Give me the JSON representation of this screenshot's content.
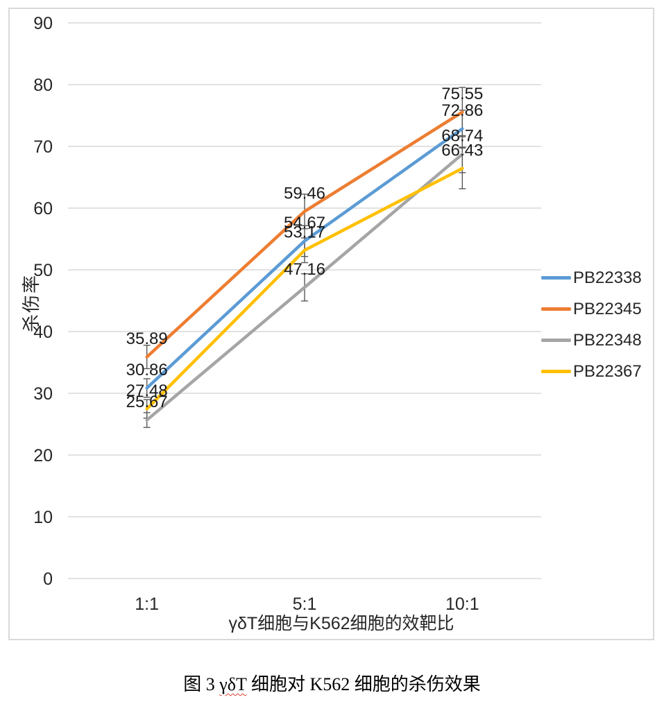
{
  "chart_data": {
    "type": "line",
    "title": "",
    "xlabel": "γδT细胞与K562细胞的效靶比",
    "ylabel": "杀伤率",
    "categories": [
      "1:1",
      "5:1",
      "10:1"
    ],
    "ylim": [
      0,
      90
    ],
    "yticks": [
      0,
      10,
      20,
      30,
      40,
      50,
      60,
      70,
      80,
      90
    ],
    "grid": true,
    "legend_position": "right",
    "data_labels": true,
    "series": [
      {
        "name": "PB22338",
        "color": "#5B9BD5",
        "values": [
          30.86,
          54.67,
          72.86
        ],
        "errors": [
          1.5,
          2.5,
          3.0
        ]
      },
      {
        "name": "PB22345",
        "color": "#ED7D31",
        "values": [
          35.89,
          59.46,
          75.55
        ],
        "errors": [
          1.9,
          2.8,
          4.0
        ]
      },
      {
        "name": "PB22348",
        "color": "#A5A5A5",
        "values": [
          25.67,
          47.16,
          68.74
        ],
        "errors": [
          1.2,
          2.2,
          3.0
        ]
      },
      {
        "name": "PB22367",
        "color": "#FFC000",
        "values": [
          27.48,
          53.17,
          66.43
        ],
        "errors": [
          1.5,
          2.0,
          3.3
        ]
      }
    ]
  },
  "caption": {
    "prefix": "图 3 ",
    "term": "γδT",
    "suffix": " 细胞对 K562 细胞的杀伤效果"
  },
  "colors": {
    "gridline": "#D9D9D9",
    "frame_border": "#D9D9D9",
    "error_bar": "#595959",
    "tick_text": "#262626",
    "data_label_text": "#1a1a1a"
  }
}
